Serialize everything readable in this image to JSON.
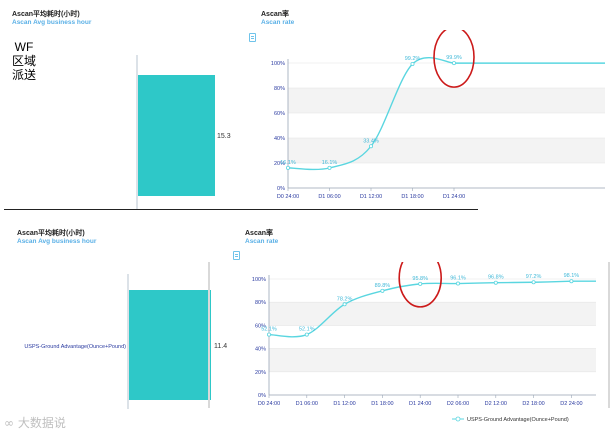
{
  "panels": {
    "top_left": {
      "title": "Ascan平均耗时(小时)",
      "subtitle": "Ascan Avg business hour"
    },
    "top_right": {
      "title": "Ascan率",
      "subtitle": "Ascan rate"
    },
    "bottom_left": {
      "title": "Ascan平均耗时(小时)",
      "subtitle": "Ascan Avg business hour"
    },
    "bottom_right": {
      "title": "Ascan率",
      "subtitle": "Ascan rate"
    }
  },
  "side_label": {
    "line1": "WF",
    "line2": "区域",
    "line3": "派送"
  },
  "bottom_category": "USPS-Ground Advantage(Ounce+Pound)",
  "watermark": "大数据说",
  "colors": {
    "teal": "#2ec8c8",
    "line": "#5ad6e0",
    "point_label": "#3fb8d8",
    "annotation": "#cc1a1a",
    "subtitle": "#5ab0e6"
  },
  "chart_data": [
    {
      "type": "bar",
      "categories": [
        ""
      ],
      "values": [
        15.3
      ],
      "labels": [
        "15.3"
      ]
    },
    {
      "type": "line",
      "x": [
        "D0 24:00",
        "D1 06:00",
        "D1 12:00",
        "D1 18:00",
        "D1 24:00"
      ],
      "series": [
        {
          "values": [
            16.1,
            16.1,
            33.4,
            99.2,
            99.9
          ],
          "labels": [
            "16.1%",
            "16.1%",
            "33.4%",
            "99.2%",
            "99.9%"
          ]
        }
      ],
      "yticks": [
        "0%",
        "20%",
        "40%",
        "60%",
        "80%",
        "100%"
      ],
      "ylim": [
        0,
        100
      ],
      "highlight": "99.9%"
    },
    {
      "type": "bar",
      "categories": [
        "USPS-Ground Advantage(Ounce+Pound)"
      ],
      "values": [
        11.4
      ],
      "labels": [
        "11.4"
      ]
    },
    {
      "type": "line",
      "x": [
        "D0 24:00",
        "D1 06:00",
        "D1 12:00",
        "D1 18:00",
        "D1 24:00",
        "D2 06:00",
        "D2 12:00",
        "D2 18:00",
        "D2 24:00"
      ],
      "series": [
        {
          "name": "USPS-Ground Advantage(Ounce+Pound)",
          "values": [
            52.1,
            52.1,
            78.2,
            89.8,
            95.8,
            96.1,
            96.8,
            97.2,
            98.1
          ],
          "labels": [
            "52.1%",
            "52.1%",
            "78.2%",
            "89.8%",
            "95.8%",
            "96.1%",
            "96.8%",
            "97.2%",
            "98.1%"
          ]
        }
      ],
      "yticks": [
        "0%",
        "20%",
        "40%",
        "60%",
        "80%",
        "100%"
      ],
      "ylim": [
        0,
        100
      ],
      "highlight": "95.8%"
    }
  ]
}
